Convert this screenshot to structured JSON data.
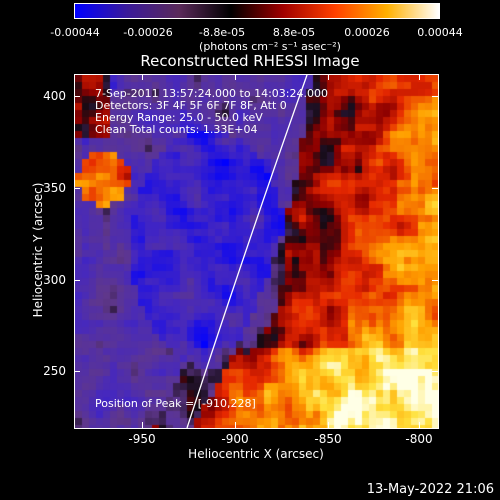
{
  "colorbar": {
    "ticks": [
      "-0.00044",
      "-0.00026",
      "-8.8e-05",
      "8.8e-05",
      "0.00026",
      "0.00044"
    ],
    "units": "(photons cm⁻² s⁻¹ asec⁻²)",
    "colormap": [
      "#0000ff",
      "#3a1a9a",
      "#5a2a5a",
      "#000000",
      "#a00000",
      "#ff4000",
      "#ffb000",
      "#ffffff"
    ]
  },
  "plot": {
    "title": "Reconstructed RHESSI Image",
    "annotations": {
      "time": "7-Sep-2011 13:57:24.000 to 14:03:24.000",
      "detectors": "Detectors: 3F 4F 5F 6F 7F 8F, Att 0",
      "energy": "Energy Range: 25.0 - 50.0 keV",
      "clean": "Clean    Total counts: 1.33E+04",
      "peak": "Position of Peak = [-910,228]"
    },
    "xlabel": "Heliocentric X (arcsec)",
    "ylabel": "Heliocentric Y (arcsec)",
    "xticks": [
      "-950",
      "-900",
      "-850",
      "-800"
    ],
    "yticks": [
      "400",
      "350",
      "300",
      "250"
    ],
    "xlim": [
      -980,
      -792
    ],
    "ylim": [
      217,
      410
    ],
    "timestamp": "13-May-2022 21:06"
  }
}
